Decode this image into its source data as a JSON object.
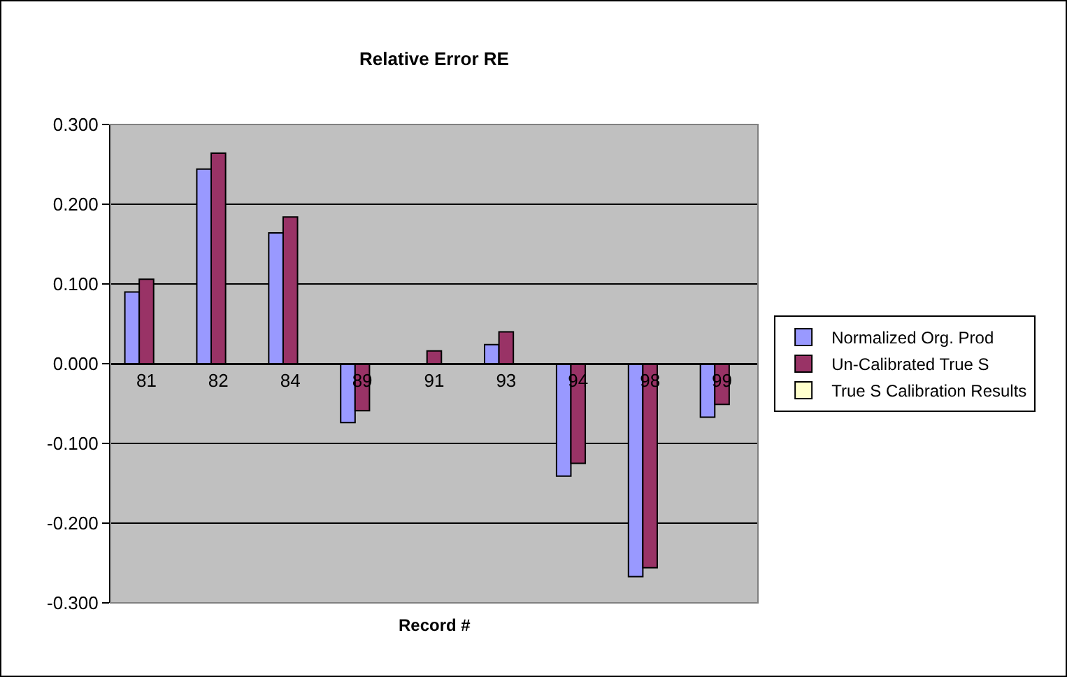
{
  "chart_data": {
    "type": "bar",
    "title": "Relative Error RE",
    "xlabel": "Record #",
    "categories": [
      "81",
      "82",
      "84",
      "89",
      "91",
      "93",
      "94",
      "98",
      "99"
    ],
    "series": [
      {
        "name": "Normalized Org. Prod",
        "color": "#9999ff",
        "values": [
          0.09,
          0.244,
          0.164,
          -0.074,
          null,
          0.024,
          -0.141,
          -0.267,
          -0.067
        ]
      },
      {
        "name": "Un-Calibrated True S",
        "color": "#993366",
        "values": [
          0.106,
          0.264,
          0.184,
          -0.059,
          0.016,
          0.04,
          -0.125,
          -0.256,
          -0.051
        ]
      },
      {
        "name": "True S Calibration Results",
        "color": "#ffffcc",
        "values": [
          null,
          null,
          null,
          null,
          null,
          null,
          null,
          null,
          null
        ]
      }
    ],
    "ylim": [
      -0.3,
      0.3
    ],
    "yticks": [
      {
        "value": -0.3,
        "label": "-0.300"
      },
      {
        "value": -0.2,
        "label": "-0.200"
      },
      {
        "value": -0.1,
        "label": "-0.100"
      },
      {
        "value": 0,
        "label": "0.000"
      },
      {
        "value": 0.1,
        "label": "0.100"
      },
      {
        "value": 0.2,
        "label": "0.200"
      },
      {
        "value": 0.3,
        "label": "0.300"
      }
    ],
    "grid": "y",
    "legend": "right"
  }
}
